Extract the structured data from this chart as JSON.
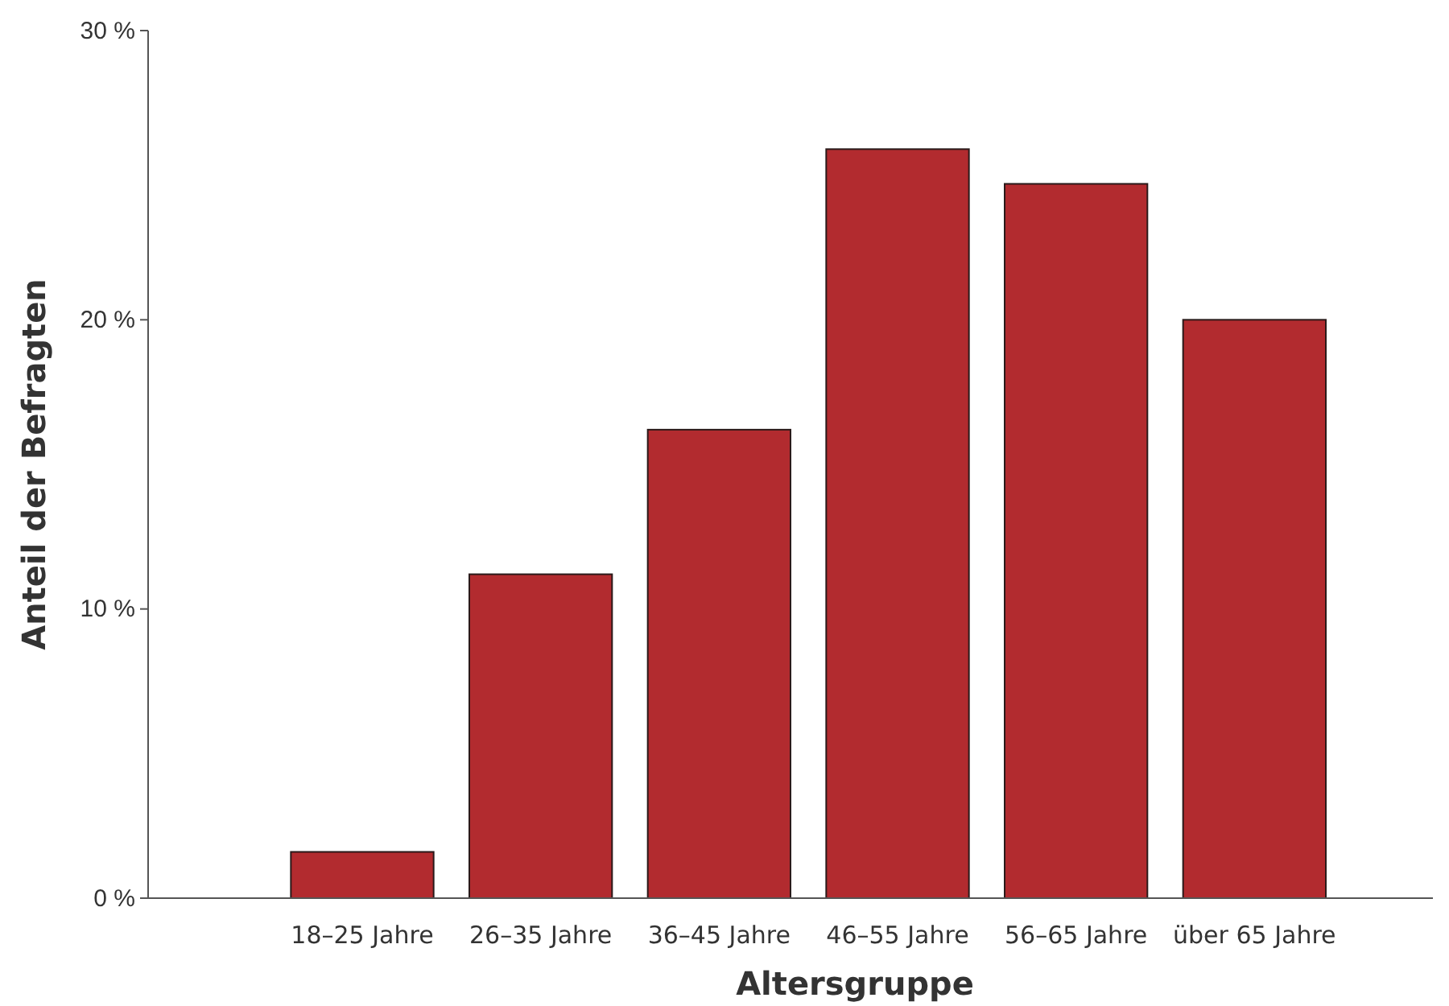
{
  "chart_data": {
    "type": "bar",
    "xlabel": "Altersgruppe",
    "ylabel": "Anteil der Befragten",
    "categories": [
      "18–25 Jahre",
      "26–35 Jahre",
      "36–45 Jahre",
      "46–55 Jahre",
      "56–65 Jahre",
      "über 65 Jahre"
    ],
    "values": [
      1.6,
      11.2,
      16.2,
      25.9,
      24.7,
      20.0
    ],
    "color": "#b22b2f",
    "ylim": [
      0,
      30
    ],
    "yticks": [
      {
        "value": 0,
        "label": "0 %"
      },
      {
        "value": 10,
        "label": "10 %"
      },
      {
        "value": 20,
        "label": "20 %"
      },
      {
        "value": 30,
        "label": "30 %"
      }
    ],
    "grid": false
  }
}
